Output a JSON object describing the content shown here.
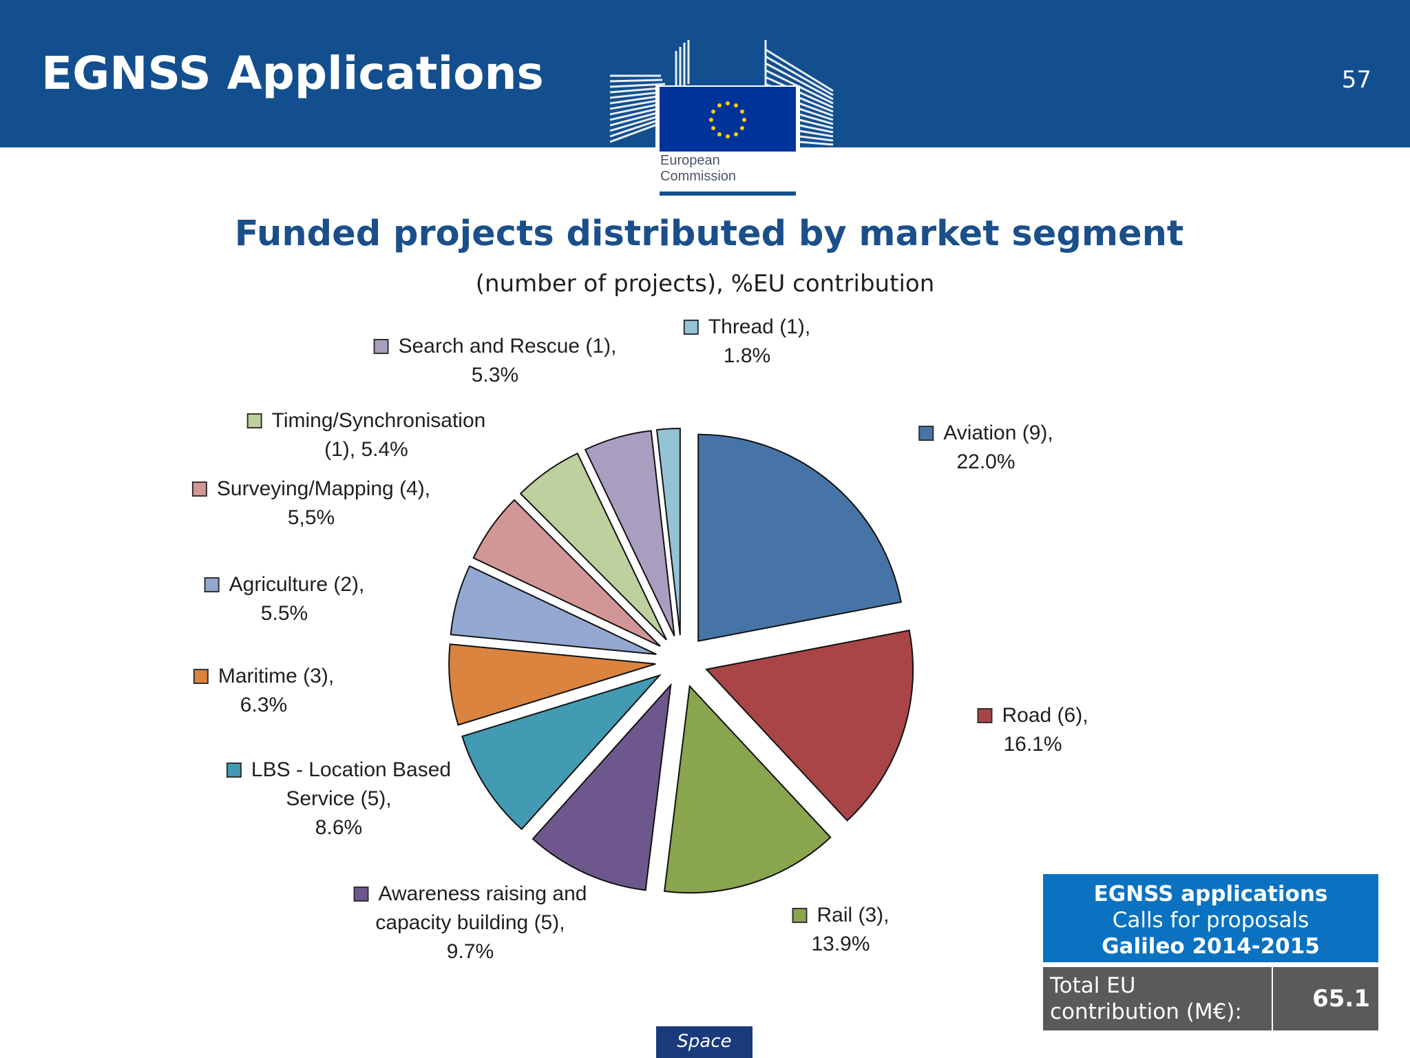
{
  "header": {
    "title": "EGNSS Applications",
    "page_number": "57"
  },
  "logo": {
    "text": "European\nCommission",
    "icon": "eu-commission-building-logo"
  },
  "chart_data": {
    "type": "pie",
    "title": "Funded projects distributed by market segment",
    "subtitle": "(number of projects), %EU contribution",
    "slices": [
      {
        "name": "Aviation",
        "projects": 9,
        "percent": 22.0,
        "label": "Aviation (9),\n22.0%",
        "color": "#4674a6"
      },
      {
        "name": "Road",
        "projects": 6,
        "percent": 16.1,
        "label": "Road (6),\n16.1%",
        "color": "#a94546"
      },
      {
        "name": "Rail",
        "projects": 3,
        "percent": 13.9,
        "label": "Rail (3),\n13.9%",
        "color": "#89a54e"
      },
      {
        "name": "Awareness raising and capacity building",
        "projects": 5,
        "percent": 9.7,
        "label": "Awareness raising and\ncapacity building (5),\n9.7%",
        "color": "#6e578d"
      },
      {
        "name": "LBS - Location Based Service",
        "projects": 5,
        "percent": 8.6,
        "label": "LBS - Location Based\nService (5),\n8.6%",
        "color": "#429ab3"
      },
      {
        "name": "Maritime",
        "projects": 3,
        "percent": 6.3,
        "label": "Maritime (3),\n6.3%",
        "color": "#da843f"
      },
      {
        "name": "Agriculture",
        "projects": 2,
        "percent": 5.5,
        "label": "Agriculture (2),\n5.5%",
        "color": "#93a8d1"
      },
      {
        "name": "Surveying/Mapping",
        "projects": 4,
        "percent": 5.5,
        "label": "Surveying/Mapping (4),\n5,5%",
        "color": "#d39696"
      },
      {
        "name": "Timing/Synchronisation",
        "projects": 1,
        "percent": 5.4,
        "label": "Timing/Synchronisation\n(1), 5.4%",
        "color": "#bdd09d"
      },
      {
        "name": "Search and Rescue",
        "projects": 1,
        "percent": 5.3,
        "label": "Search and Rescue (1),\n5.3%",
        "color": "#aa9ec0"
      },
      {
        "name": "Thread",
        "projects": 1,
        "percent": 1.8,
        "label": "Thread (1),\n1.8%",
        "color": "#93c4d6"
      }
    ]
  },
  "summary_box": {
    "heading": "EGNSS applications",
    "line2": "Calls for proposals",
    "line3": "Galileo 2014-2015",
    "total_label": "Total EU\ncontribution (M€):",
    "total_value": "65.1"
  },
  "footer": {
    "tag": "Space"
  }
}
